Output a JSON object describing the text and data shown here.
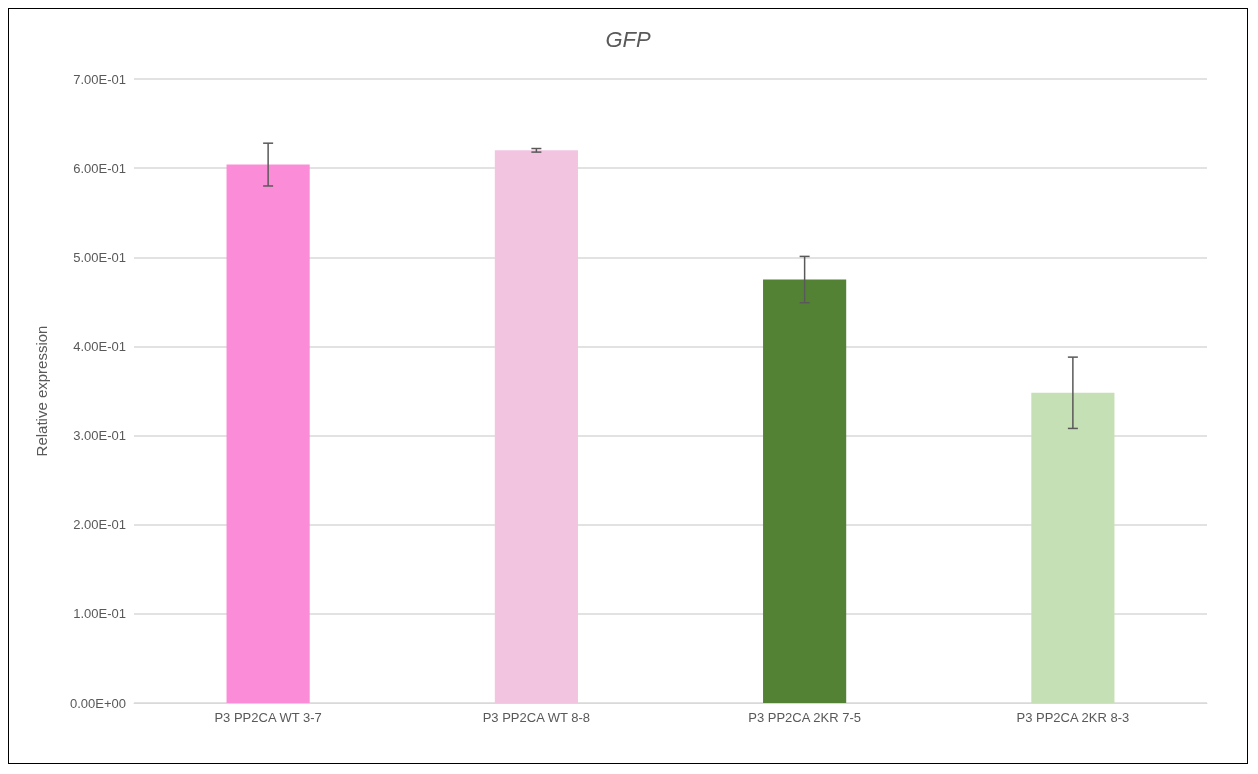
{
  "chart_data": {
    "type": "bar",
    "title": "GFP",
    "ylabel": "Relative expression",
    "categories": [
      "P3 PP2CA WT 3-7",
      "P3 PP2CA WT 8-8",
      "P3 PP2CA 2KR 7-5",
      "P3 PP2CA 2KR 8-3"
    ],
    "values": [
      0.604,
      0.62,
      0.475,
      0.348
    ],
    "colors": [
      "#fb8dd8",
      "#f2c4e0",
      "#548235",
      "#c5e0b4"
    ],
    "errors": [
      0.024,
      0.002,
      0.026,
      0.04
    ],
    "ylim": [
      0,
      0.7
    ],
    "yticks": [
      {
        "value": 0,
        "label": "0.00E+00"
      },
      {
        "value": 0.1,
        "label": "1.00E-01"
      },
      {
        "value": 0.2,
        "label": "2.00E-01"
      },
      {
        "value": 0.3,
        "label": "3.00E-01"
      },
      {
        "value": 0.4,
        "label": "4.00E-01"
      },
      {
        "value": 0.5,
        "label": "5.00E-01"
      },
      {
        "value": 0.6,
        "label": "6.00E-01"
      },
      {
        "value": 0.7,
        "label": "7.00E-01"
      }
    ],
    "grid": "y"
  }
}
